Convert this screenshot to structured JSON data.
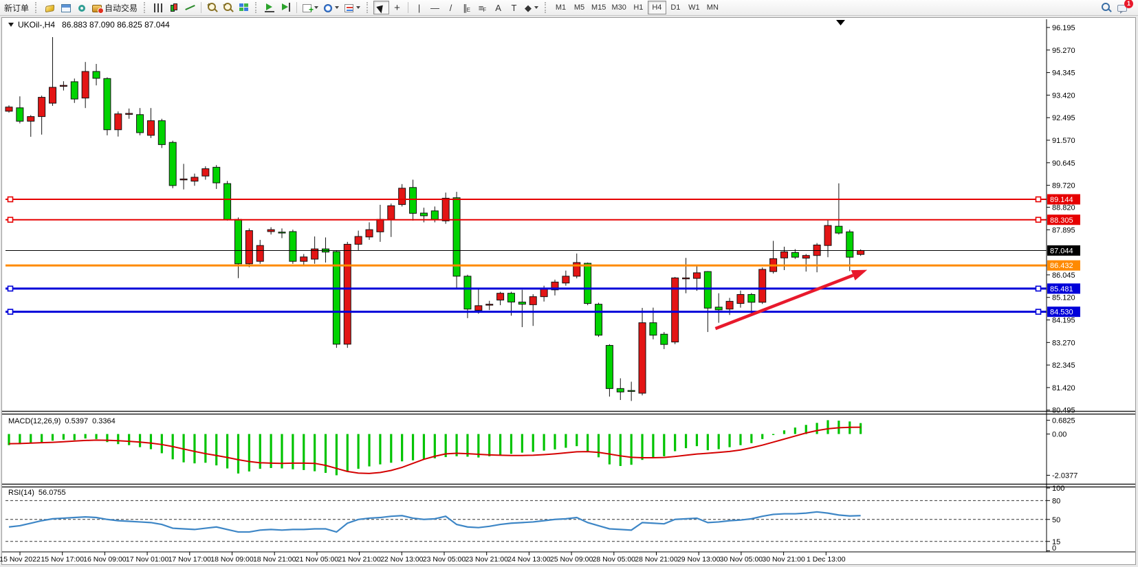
{
  "toolbar": {
    "new_order_label": "新订单",
    "autotrading_label": "自动交易",
    "timeframes": [
      "M1",
      "M5",
      "M15",
      "M30",
      "H1",
      "H4",
      "D1",
      "W1",
      "MN"
    ],
    "active_timeframe": "H4",
    "notification_count": "1"
  },
  "chart": {
    "title_symbol": "UKOil-,H4",
    "title_ohlc": "86.883 87.090 86.825 87.044"
  },
  "chart_data": {
    "type": "candlestick",
    "title": "UKOil-,H4",
    "symbol": "UKOil-",
    "timeframe": "H4",
    "last_ohlc": {
      "open": 86.883,
      "high": 87.09,
      "low": 86.825,
      "close": 87.044
    },
    "colors": {
      "up": "#e31515",
      "down": "#00d300",
      "wick": "#111111",
      "line_red": "#e60000",
      "line_blue": "#0000d9",
      "line_orange": "#ff8a00",
      "current_line": "#000000",
      "arrow": "#e8192c",
      "macd_hist": "#00c300",
      "macd_signal": "#d40000",
      "rsi_line": "#3d86c6"
    },
    "y_axis_ticks": [
      "96.195",
      "95.270",
      "94.345",
      "93.420",
      "92.495",
      "91.570",
      "90.645",
      "89.720",
      "88.820",
      "87.895",
      "86.045",
      "85.120",
      "84.195",
      "83.270",
      "82.345",
      "81.420",
      "80.495"
    ],
    "x_labels": [
      "15 Nov 2022",
      "15 Nov 17:00",
      "16 Nov 09:00",
      "17 Nov 01:00",
      "17 Nov 17:00",
      "18 Nov 09:00",
      "18 Nov 21:00",
      "21 Nov 05:00",
      "21 Nov 21:00",
      "22 Nov 13:00",
      "23 Nov 05:00",
      "23 Nov 21:00",
      "24 Nov 13:00",
      "25 Nov 09:00",
      "28 Nov 05:00",
      "28 Nov 21:00",
      "29 Nov 13:00",
      "30 Nov 05:00",
      "30 Nov 21:00",
      "1 Dec 13:00"
    ],
    "hlines": [
      {
        "price": 89.144,
        "label": "89.144",
        "color": "#e60000",
        "width": 2,
        "handles": true
      },
      {
        "price": 88.305,
        "label": "88.305",
        "color": "#e60000",
        "width": 2,
        "handles": true
      },
      {
        "price": 87.044,
        "label": "87.044",
        "color": "#000000",
        "width": 1,
        "handles": false
      },
      {
        "price": 86.432,
        "label": "86.432",
        "color": "#ff8a00",
        "width": 3,
        "handles": false
      },
      {
        "price": 85.481,
        "label": "85.481",
        "color": "#0000d9",
        "width": 3,
        "handles": true
      },
      {
        "price": 84.53,
        "label": "84.530",
        "color": "#0000d9",
        "width": 3,
        "handles": true
      }
    ],
    "trend_arrow": {
      "x1_bar": 65.7,
      "y1_price": 83.84,
      "x2_bar": 79.6,
      "y2_price": 86.25
    },
    "candles": [
      [
        92.76,
        93.0,
        92.7,
        92.93
      ],
      [
        92.9,
        93.37,
        92.26,
        92.35
      ],
      [
        92.35,
        92.6,
        91.71,
        92.54
      ],
      [
        92.54,
        93.4,
        91.8,
        93.33
      ],
      [
        93.09,
        95.8,
        92.98,
        93.74
      ],
      [
        93.78,
        93.99,
        93.61,
        93.82
      ],
      [
        93.97,
        94.1,
        93.1,
        93.26
      ],
      [
        93.3,
        94.78,
        92.89,
        94.39
      ],
      [
        94.39,
        94.7,
        93.82,
        94.11
      ],
      [
        94.1,
        94.15,
        91.77,
        92.0
      ],
      [
        92.0,
        92.75,
        91.72,
        92.65
      ],
      [
        92.63,
        92.87,
        92.45,
        92.67
      ],
      [
        92.62,
        92.89,
        91.77,
        91.88
      ],
      [
        91.77,
        92.89,
        91.66,
        92.37
      ],
      [
        92.37,
        92.45,
        91.25,
        91.39
      ],
      [
        91.48,
        91.55,
        89.6,
        89.71
      ],
      [
        89.95,
        90.6,
        89.55,
        89.98
      ],
      [
        89.89,
        90.2,
        89.7,
        90.05
      ],
      [
        90.1,
        90.5,
        89.95,
        90.4
      ],
      [
        90.46,
        90.55,
        89.57,
        89.82
      ],
      [
        89.79,
        89.9,
        88.27,
        88.31
      ],
      [
        88.32,
        88.4,
        85.91,
        86.5
      ],
      [
        86.5,
        87.95,
        86.36,
        87.86
      ],
      [
        86.6,
        87.48,
        86.5,
        87.25
      ],
      [
        87.82,
        88.0,
        87.7,
        87.9
      ],
      [
        87.8,
        87.95,
        87.55,
        87.78
      ],
      [
        87.82,
        87.9,
        86.5,
        86.6
      ],
      [
        86.6,
        86.9,
        86.45,
        86.78
      ],
      [
        86.69,
        87.62,
        86.5,
        87.11
      ],
      [
        87.11,
        87.58,
        86.55,
        86.98
      ],
      [
        87.0,
        87.05,
        83.05,
        83.2
      ],
      [
        83.2,
        87.4,
        83.05,
        87.3
      ],
      [
        87.3,
        87.86,
        87.06,
        87.62
      ],
      [
        87.6,
        88.2,
        87.48,
        87.9
      ],
      [
        87.81,
        88.92,
        87.4,
        88.32
      ],
      [
        88.32,
        88.97,
        87.6,
        88.88
      ],
      [
        88.93,
        89.77,
        88.85,
        89.6
      ],
      [
        89.63,
        89.95,
        88.27,
        88.57
      ],
      [
        88.58,
        88.8,
        88.2,
        88.47
      ],
      [
        88.67,
        88.85,
        88.2,
        88.32
      ],
      [
        88.26,
        89.42,
        88.14,
        89.19
      ],
      [
        89.21,
        89.45,
        85.48,
        85.99
      ],
      [
        85.99,
        86.05,
        84.27,
        84.64
      ],
      [
        84.59,
        85.45,
        84.45,
        84.78
      ],
      [
        84.82,
        84.98,
        84.6,
        84.84
      ],
      [
        85.01,
        85.35,
        84.8,
        85.29
      ],
      [
        85.29,
        85.35,
        84.37,
        84.93
      ],
      [
        84.93,
        85.43,
        83.9,
        84.84
      ],
      [
        84.82,
        85.25,
        83.95,
        85.15
      ],
      [
        85.15,
        85.6,
        84.95,
        85.47
      ],
      [
        85.43,
        85.85,
        85.2,
        85.75
      ],
      [
        85.71,
        86.22,
        85.6,
        85.99
      ],
      [
        85.99,
        86.92,
        85.9,
        86.55
      ],
      [
        86.52,
        86.55,
        84.8,
        84.87
      ],
      [
        84.84,
        84.9,
        83.5,
        83.57
      ],
      [
        83.15,
        83.2,
        81.05,
        81.38
      ],
      [
        81.38,
        81.8,
        80.91,
        81.24
      ],
      [
        81.3,
        81.66,
        80.87,
        81.27
      ],
      [
        81.19,
        84.69,
        81.1,
        84.08
      ],
      [
        84.08,
        84.7,
        83.4,
        83.57
      ],
      [
        83.61,
        83.7,
        83.0,
        83.19
      ],
      [
        83.29,
        85.96,
        83.2,
        85.92
      ],
      [
        85.88,
        86.74,
        85.29,
        85.92
      ],
      [
        85.9,
        86.46,
        85.39,
        86.13
      ],
      [
        86.18,
        86.2,
        83.7,
        84.68
      ],
      [
        84.72,
        85.29,
        84.08,
        84.61
      ],
      [
        84.64,
        85.1,
        84.4,
        84.96
      ],
      [
        84.87,
        85.4,
        84.7,
        85.24
      ],
      [
        85.24,
        85.3,
        84.36,
        84.92
      ],
      [
        84.92,
        86.35,
        84.85,
        86.27
      ],
      [
        86.18,
        87.44,
        86.1,
        86.71
      ],
      [
        86.74,
        87.2,
        86.24,
        86.99
      ],
      [
        86.96,
        87.1,
        86.7,
        86.77
      ],
      [
        86.73,
        86.9,
        86.18,
        86.84
      ],
      [
        86.84,
        87.35,
        86.15,
        87.27
      ],
      [
        87.25,
        88.29,
        86.77,
        88.07
      ],
      [
        88.04,
        89.8,
        87.7,
        87.76
      ],
      [
        87.81,
        87.9,
        86.2,
        86.77
      ],
      [
        86.883,
        87.09,
        86.825,
        87.044
      ]
    ],
    "macd": {
      "label": "MACD(12,26,9)",
      "main_value_text": "0.5397",
      "signal_value_text": "0.3364",
      "scale": [
        {
          "v": 0.6825,
          "t": "0.6825"
        },
        {
          "v": 0,
          "t": "0.00"
        },
        {
          "v": -2.0377,
          "t": "-2.0377"
        }
      ],
      "hist": [
        -0.55,
        -0.5,
        -0.45,
        -0.4,
        -0.33,
        -0.28,
        -0.3,
        -0.22,
        -0.25,
        -0.4,
        -0.5,
        -0.55,
        -0.65,
        -0.75,
        -0.95,
        -1.25,
        -1.4,
        -1.45,
        -1.42,
        -1.55,
        -1.7,
        -1.95,
        -1.85,
        -1.72,
        -1.68,
        -1.7,
        -1.74,
        -1.78,
        -1.84,
        -1.92,
        -2.0377,
        -1.85,
        -1.72,
        -1.6,
        -1.5,
        -1.42,
        -1.35,
        -1.3,
        -1.25,
        -1.2,
        -1.14,
        -1.1,
        -1.12,
        -1.16,
        -1.1,
        -1.04,
        -0.98,
        -0.92,
        -0.88,
        -0.82,
        -0.76,
        -0.68,
        -0.6,
        -0.85,
        -1.15,
        -1.5,
        -1.58,
        -1.52,
        -1.28,
        -1.18,
        -1.1,
        -0.85,
        -0.7,
        -0.6,
        -0.8,
        -0.75,
        -0.65,
        -0.55,
        -0.45,
        -0.25,
        -0.05,
        0.18,
        0.32,
        0.45,
        0.55,
        0.6825,
        0.66,
        0.62,
        0.5397
      ],
      "signal": [
        -0.48,
        -0.47,
        -0.45,
        -0.43,
        -0.41,
        -0.38,
        -0.35,
        -0.32,
        -0.3,
        -0.31,
        -0.33,
        -0.36,
        -0.4,
        -0.45,
        -0.52,
        -0.62,
        -0.74,
        -0.86,
        -0.97,
        -1.06,
        -1.16,
        -1.27,
        -1.36,
        -1.42,
        -1.44,
        -1.45,
        -1.44,
        -1.44,
        -1.45,
        -1.55,
        -1.7,
        -1.85,
        -1.93,
        -1.95,
        -1.9,
        -1.8,
        -1.65,
        -1.45,
        -1.25,
        -1.1,
        -0.98,
        -0.95,
        -0.97,
        -1.0,
        -1.03,
        -1.05,
        -1.06,
        -1.06,
        -1.05,
        -1.02,
        -0.98,
        -0.93,
        -0.88,
        -0.87,
        -0.91,
        -0.99,
        -1.08,
        -1.15,
        -1.17,
        -1.17,
        -1.16,
        -1.11,
        -1.05,
        -0.99,
        -0.95,
        -0.91,
        -0.86,
        -0.79,
        -0.68,
        -0.55,
        -0.4,
        -0.25,
        -0.1,
        0.05,
        0.17,
        0.26,
        0.31,
        0.33,
        0.3364
      ]
    },
    "rsi": {
      "label": "RSI(14)",
      "value_text": "56.0755",
      "scale": [
        {
          "v": 100,
          "t": "100"
        },
        {
          "v": 80,
          "t": "80"
        },
        {
          "v": 50,
          "t": "50"
        },
        {
          "v": 15,
          "t": "15"
        },
        {
          "v": 0,
          "t": "0"
        }
      ],
      "dashed_levels": [
        80,
        50,
        15
      ],
      "values": [
        38,
        40,
        44,
        48,
        51,
        52,
        53,
        54,
        53,
        50,
        48,
        47,
        46,
        45,
        42,
        36,
        35,
        34,
        36,
        38,
        34,
        30,
        30,
        33,
        34,
        33,
        34,
        34,
        35,
        35,
        30,
        44,
        50,
        52,
        53,
        55,
        56,
        52,
        50,
        51,
        55,
        42,
        38,
        37,
        39,
        42,
        44,
        45,
        46,
        48,
        50,
        51,
        53,
        45,
        40,
        35,
        34,
        33,
        45,
        44,
        43,
        50,
        51,
        52,
        45,
        46,
        48,
        49,
        51,
        55,
        58,
        59,
        59,
        60,
        62,
        60,
        57,
        55.5,
        56.08
      ]
    }
  }
}
